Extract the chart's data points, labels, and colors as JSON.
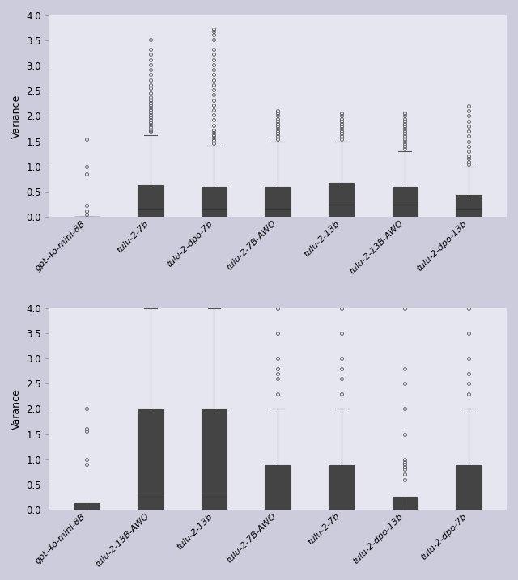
{
  "top_labels": [
    "gpt-4o-mini-8B",
    "tulu-2-7b",
    "tulu-2-dpo-7b",
    "tulu-2-7B-AWQ",
    "tulu-2-13b",
    "tulu-2-13B-AWQ",
    "tulu-2-dpo-13b"
  ],
  "bottom_labels": [
    "gpt-4o-mini-8B",
    "tulu-2-13B-AWQ",
    "tulu-2-13b",
    "tulu-2-7B-AWQ",
    "tulu-2-7b",
    "tulu-2-dpo-13b",
    "tulu-2-dpo-7b"
  ],
  "top_color": "#4aad99",
  "bottom_color": "#e88090",
  "bg_color": "#e6e6f0",
  "fig_color": "#ccccdd",
  "top_ylabel": "Variance",
  "bottom_ylabel": "Varance",
  "ylim": [
    0.0,
    4.0
  ],
  "yticks": [
    0.0,
    0.5,
    1.0,
    1.5,
    2.0,
    2.5,
    3.0,
    3.5,
    4.0
  ],
  "top_boxes": [
    {
      "med": 0.0,
      "q1": 0.0,
      "q3": 0.0,
      "whislo": 0.0,
      "whishi": 0.0,
      "fliers": [
        0.05,
        0.12,
        0.22,
        0.85,
        1.0,
        1.55
      ]
    },
    {
      "med": 0.17,
      "q1": 0.0,
      "q3": 0.63,
      "whislo": 0.0,
      "whishi": 1.63,
      "fliers": [
        1.68,
        1.72,
        1.78,
        1.83,
        1.88,
        1.93,
        1.97,
        2.02,
        2.07,
        2.12,
        2.17,
        2.22,
        2.27,
        2.32,
        2.37,
        2.45,
        2.55,
        2.62,
        2.72,
        2.82,
        2.92,
        3.02,
        3.12,
        3.22,
        3.32,
        3.52
      ]
    },
    {
      "med": 0.17,
      "q1": 0.0,
      "q3": 0.6,
      "whislo": 0.0,
      "whishi": 1.42,
      "fliers": [
        1.47,
        1.52,
        1.57,
        1.62,
        1.67,
        1.72,
        1.82,
        1.92,
        2.02,
        2.12,
        2.22,
        2.32,
        2.42,
        2.52,
        2.62,
        2.72,
        2.82,
        2.92,
        3.02,
        3.12,
        3.22,
        3.32,
        3.52,
        3.62,
        3.67,
        3.72
      ]
    },
    {
      "med": 0.17,
      "q1": 0.0,
      "q3": 0.6,
      "whislo": 0.0,
      "whishi": 1.5,
      "fliers": [
        1.55,
        1.6,
        1.65,
        1.7,
        1.75,
        1.8,
        1.85,
        1.9,
        1.95,
        2.0,
        2.05,
        2.1
      ]
    },
    {
      "med": 0.25,
      "q1": 0.0,
      "q3": 0.68,
      "whislo": 0.0,
      "whishi": 1.5,
      "fliers": [
        1.55,
        1.6,
        1.65,
        1.7,
        1.75,
        1.8,
        1.85,
        1.9,
        1.95,
        2.0,
        2.05
      ]
    },
    {
      "med": 0.25,
      "q1": 0.0,
      "q3": 0.6,
      "whislo": 0.0,
      "whishi": 1.3,
      "fliers": [
        1.35,
        1.4,
        1.45,
        1.5,
        1.55,
        1.6,
        1.65,
        1.7,
        1.75,
        1.8,
        1.85,
        1.9,
        1.95,
        2.0,
        2.05
      ]
    },
    {
      "med": 0.17,
      "q1": 0.0,
      "q3": 0.44,
      "whislo": 0.0,
      "whishi": 1.0,
      "fliers": [
        1.05,
        1.1,
        1.15,
        1.2,
        1.3,
        1.4,
        1.5,
        1.6,
        1.7,
        1.8,
        1.9,
        2.0,
        2.1,
        2.2
      ]
    }
  ],
  "bottom_boxes": [
    {
      "med": 0.0,
      "q1": 0.0,
      "q3": 0.13,
      "whislo": 0.0,
      "whishi": 0.0,
      "fliers": [
        0.9,
        1.0,
        1.55,
        1.6,
        2.0
      ]
    },
    {
      "med": 0.25,
      "q1": 0.0,
      "q3": 2.0,
      "whislo": 0.0,
      "whishi": 4.0,
      "fliers": []
    },
    {
      "med": 0.25,
      "q1": 0.0,
      "q3": 2.0,
      "whislo": 0.0,
      "whishi": 4.0,
      "fliers": []
    },
    {
      "med": 0.0,
      "q1": 0.0,
      "q3": 0.88,
      "whislo": 0.0,
      "whishi": 2.0,
      "fliers": [
        2.3,
        2.6,
        2.7,
        2.8,
        3.0,
        3.5,
        4.0
      ]
    },
    {
      "med": 0.0,
      "q1": 0.0,
      "q3": 0.88,
      "whislo": 0.0,
      "whishi": 2.0,
      "fliers": [
        2.3,
        2.6,
        2.8,
        3.0,
        3.5,
        4.0
      ]
    },
    {
      "med": 0.0,
      "q1": 0.0,
      "q3": 0.25,
      "whislo": 0.0,
      "whishi": 0.0,
      "fliers": [
        0.6,
        0.7,
        0.8,
        0.85,
        0.9,
        0.95,
        1.0,
        1.5,
        2.0,
        2.5,
        2.8,
        4.0
      ]
    },
    {
      "med": 0.0,
      "q1": 0.0,
      "q3": 0.88,
      "whislo": 0.0,
      "whishi": 2.0,
      "fliers": [
        2.3,
        2.5,
        2.7,
        3.0,
        3.5,
        4.0
      ]
    }
  ]
}
